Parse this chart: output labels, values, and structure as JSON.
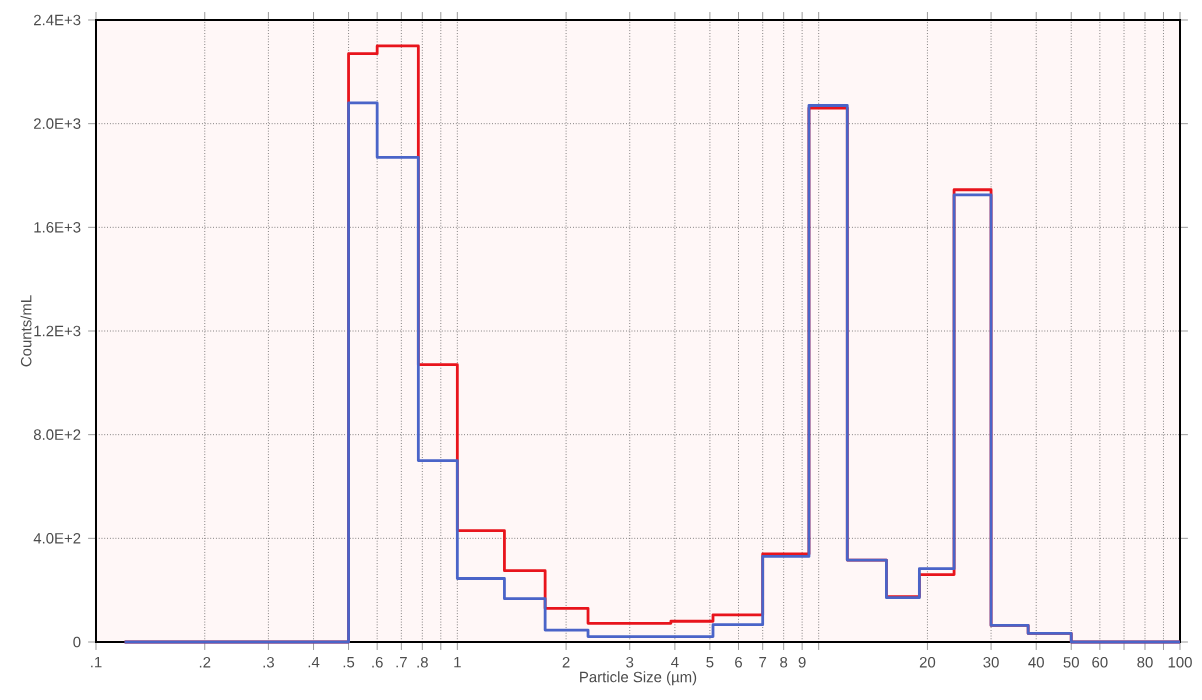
{
  "chart_data": {
    "type": "histogram",
    "xlabel": "Particle Size (µm)",
    "ylabel": "Counts/mL",
    "log": "x",
    "grid": true,
    "line_style": "solid",
    "xlim": [
      0.1,
      100
    ],
    "ylim": [
      0,
      2400
    ],
    "xticks": [
      {
        "value": 0.1,
        "label": ".1"
      },
      {
        "value": 0.2,
        "label": ".2"
      },
      {
        "value": 0.3,
        "label": ".3"
      },
      {
        "value": 0.4,
        "label": ".4"
      },
      {
        "value": 0.5,
        "label": ".5"
      },
      {
        "value": 0.6,
        "label": ".6"
      },
      {
        "value": 0.7,
        "label": ".7"
      },
      {
        "value": 0.8,
        "label": ".8"
      },
      {
        "value": 0.9,
        "label": null
      },
      {
        "value": 1,
        "label": "1"
      },
      {
        "value": 2,
        "label": "2"
      },
      {
        "value": 3,
        "label": "3"
      },
      {
        "value": 4,
        "label": "4"
      },
      {
        "value": 5,
        "label": "5"
      },
      {
        "value": 6,
        "label": "6"
      },
      {
        "value": 7,
        "label": "7"
      },
      {
        "value": 8,
        "label": "8"
      },
      {
        "value": 9,
        "label": "9"
      },
      {
        "value": 10,
        "label": null
      },
      {
        "value": 20,
        "label": "20"
      },
      {
        "value": 30,
        "label": "30"
      },
      {
        "value": 40,
        "label": "40"
      },
      {
        "value": 50,
        "label": "50"
      },
      {
        "value": 60,
        "label": "60"
      },
      {
        "value": 70,
        "label": null
      },
      {
        "value": 80,
        "label": "80"
      },
      {
        "value": 90,
        "label": null
      },
      {
        "value": 100,
        "label": "100"
      }
    ],
    "yticks": [
      {
        "value": 0,
        "label": "0"
      },
      {
        "value": 400,
        "label": "4.0E+2"
      },
      {
        "value": 800,
        "label": "8.0E+2"
      },
      {
        "value": 1200,
        "label": "1.2E+3"
      },
      {
        "value": 1600,
        "label": "1.6E+3"
      },
      {
        "value": 2000,
        "label": "2.0E+3"
      },
      {
        "value": 2400,
        "label": "2.4E+3"
      }
    ],
    "bins": [
      0.12,
      0.5,
      0.6,
      0.78,
      1.0,
      1.35,
      1.75,
      2.3,
      3.0,
      3.9,
      5.1,
      7.0,
      9.4,
      12,
      15.4,
      19,
      23.7,
      30,
      38,
      50,
      100
    ],
    "series": [
      {
        "color": "#e8141c",
        "values": [
          0,
          2270,
          2300,
          1070,
          430,
          275,
          130,
          72,
          72,
          80,
          105,
          340,
          2060,
          316,
          175,
          260,
          1745,
          64,
          33,
          0
        ]
      },
      {
        "color": "#4a64c8",
        "values": [
          0,
          2080,
          1870,
          700,
          245,
          167,
          46,
          21,
          21,
          21,
          67,
          330,
          2070,
          316,
          171,
          283,
          1725,
          64,
          33,
          0
        ]
      }
    ]
  }
}
